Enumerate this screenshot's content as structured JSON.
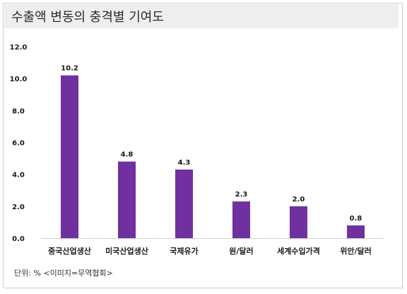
{
  "title": "수출액 변동의 충격별 기여도",
  "footnote": "단위: % <이미지=무역협회>",
  "colors": {
    "bar": "#7030a0",
    "axis": "#d0d0d0",
    "title_bg": "#eeeeee"
  },
  "chart_data": {
    "type": "bar",
    "categories": [
      "중국산업생산",
      "미국산업생산",
      "국제유가",
      "원/달러",
      "세계수입가격",
      "위안/달러"
    ],
    "values": [
      10.2,
      4.8,
      4.3,
      2.3,
      2.0,
      0.8
    ],
    "value_labels": [
      "10.2",
      "4.8",
      "4.3",
      "2.3",
      "2.0",
      "0.8"
    ],
    "yticks": [
      "0.0",
      "2.0",
      "4.0",
      "6.0",
      "8.0",
      "10.0",
      "12.0"
    ],
    "ylim": [
      0,
      12
    ],
    "grid": false,
    "legend": "none",
    "title": "",
    "xlabel": "",
    "ylabel": ""
  }
}
